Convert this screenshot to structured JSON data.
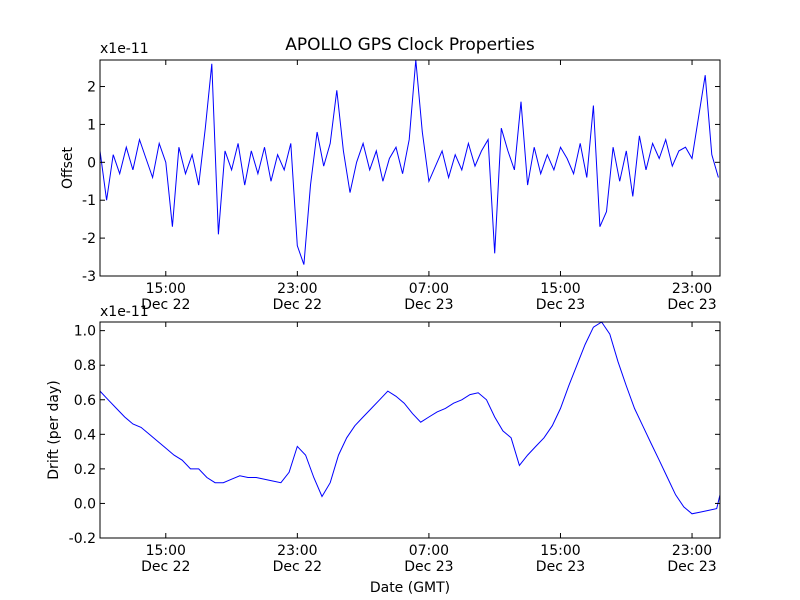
{
  "chart_data": [
    {
      "type": "line",
      "title": "APOLLO GPS Clock Properties",
      "xlabel": "",
      "ylabel": "Offset",
      "y_multiplier": "x1e-11",
      "ylim": [
        -3,
        2.7
      ],
      "yticks": [
        -3,
        -2,
        -1,
        0,
        1,
        2
      ],
      "xlim_hours": [
        11.0,
        48.7
      ],
      "xticks": [
        {
          "hour": 15,
          "time": "15:00",
          "date": "Dec 22"
        },
        {
          "hour": 23,
          "time": "23:00",
          "date": "Dec 22"
        },
        {
          "hour": 31,
          "time": "07:00",
          "date": "Dec 23"
        },
        {
          "hour": 39,
          "time": "15:00",
          "date": "Dec 23"
        },
        {
          "hour": 47,
          "time": "23:00",
          "date": "Dec 23"
        }
      ],
      "grid": false,
      "series": [
        {
          "color": "#0000ff",
          "x": [
            11.0,
            11.4,
            11.8,
            12.2,
            12.6,
            13.0,
            13.4,
            13.8,
            14.2,
            14.6,
            15.0,
            15.4,
            15.8,
            16.2,
            16.6,
            17.0,
            17.4,
            17.8,
            18.2,
            18.6,
            19.0,
            19.4,
            19.8,
            20.2,
            20.6,
            21.0,
            21.4,
            21.8,
            22.2,
            22.6,
            23.0,
            23.4,
            23.8,
            24.2,
            24.6,
            25.0,
            25.4,
            25.8,
            26.2,
            26.6,
            27.0,
            27.4,
            27.8,
            28.2,
            28.6,
            29.0,
            29.4,
            29.8,
            30.2,
            30.6,
            31.0,
            31.4,
            31.8,
            32.2,
            32.6,
            33.0,
            33.4,
            33.8,
            34.2,
            34.6,
            35.0,
            35.4,
            35.8,
            36.2,
            36.6,
            37.0,
            37.4,
            37.8,
            38.2,
            38.6,
            39.0,
            39.4,
            39.8,
            40.2,
            40.6,
            41.0,
            41.4,
            41.8,
            42.2,
            42.6,
            43.0,
            43.4,
            43.8,
            44.2,
            44.6,
            45.0,
            45.4,
            45.8,
            46.2,
            46.6,
            47.0,
            47.4,
            47.8,
            48.2,
            48.6
          ],
          "y": [
            0.3,
            -1.0,
            0.2,
            -0.3,
            0.4,
            -0.2,
            0.6,
            0.1,
            -0.4,
            0.5,
            0.0,
            -1.7,
            0.4,
            -0.3,
            0.2,
            -0.6,
            0.9,
            2.6,
            -1.9,
            0.3,
            -0.2,
            0.5,
            -0.6,
            0.3,
            -0.3,
            0.4,
            -0.5,
            0.2,
            -0.2,
            0.5,
            -2.2,
            -2.7,
            -0.6,
            0.8,
            -0.1,
            0.5,
            1.9,
            0.3,
            -0.8,
            0.0,
            0.5,
            -0.2,
            0.3,
            -0.5,
            0.1,
            0.4,
            -0.3,
            0.6,
            2.7,
            0.8,
            -0.5,
            -0.1,
            0.3,
            -0.4,
            0.2,
            -0.2,
            0.5,
            -0.1,
            0.3,
            0.6,
            -2.4,
            0.9,
            0.3,
            -0.2,
            1.6,
            -0.6,
            0.4,
            -0.3,
            0.2,
            -0.2,
            0.4,
            0.1,
            -0.3,
            0.5,
            -0.4,
            1.5,
            -1.7,
            -1.3,
            0.4,
            -0.5,
            0.3,
            -0.9,
            0.7,
            -0.2,
            0.5,
            0.1,
            0.6,
            -0.1,
            0.3,
            0.4,
            0.1,
            1.2,
            2.3,
            0.2,
            -0.4
          ]
        }
      ]
    },
    {
      "type": "line",
      "title": "",
      "xlabel": "Date (GMT)",
      "ylabel": "Drift (per day)",
      "y_multiplier": "x1e-11",
      "ylim": [
        -0.2,
        1.05
      ],
      "yticks": [
        -0.2,
        0.0,
        0.2,
        0.4,
        0.6,
        0.8,
        1.0
      ],
      "ytick_labels": [
        "-0.2",
        "0.0",
        "0.2",
        "0.4",
        "0.6",
        "0.8",
        "1.0"
      ],
      "xlim_hours": [
        11.0,
        48.7
      ],
      "xticks": [
        {
          "hour": 15,
          "time": "15:00",
          "date": "Dec 22"
        },
        {
          "hour": 23,
          "time": "23:00",
          "date": "Dec 22"
        },
        {
          "hour": 31,
          "time": "07:00",
          "date": "Dec 23"
        },
        {
          "hour": 39,
          "time": "15:00",
          "date": "Dec 23"
        },
        {
          "hour": 47,
          "time": "23:00",
          "date": "Dec 23"
        }
      ],
      "grid": false,
      "series": [
        {
          "color": "#0000ff",
          "x": [
            11.0,
            11.5,
            12.0,
            12.5,
            13.0,
            13.5,
            14.0,
            14.5,
            15.0,
            15.5,
            16.0,
            16.5,
            17.0,
            17.5,
            18.0,
            18.5,
            19.0,
            19.5,
            20.0,
            20.5,
            21.0,
            21.5,
            22.0,
            22.5,
            23.0,
            23.5,
            24.0,
            24.5,
            25.0,
            25.5,
            26.0,
            26.5,
            27.0,
            27.5,
            28.0,
            28.5,
            29.0,
            29.5,
            30.0,
            30.5,
            31.0,
            31.5,
            32.0,
            32.5,
            33.0,
            33.5,
            34.0,
            34.5,
            35.0,
            35.5,
            36.0,
            36.5,
            37.0,
            37.5,
            38.0,
            38.5,
            39.0,
            39.5,
            40.0,
            40.5,
            41.0,
            41.5,
            42.0,
            42.5,
            43.0,
            43.5,
            44.0,
            44.5,
            45.0,
            45.5,
            46.0,
            46.5,
            47.0,
            47.5,
            48.0,
            48.5,
            48.7
          ],
          "y": [
            0.65,
            0.6,
            0.55,
            0.5,
            0.46,
            0.44,
            0.4,
            0.36,
            0.32,
            0.28,
            0.25,
            0.2,
            0.2,
            0.15,
            0.12,
            0.12,
            0.14,
            0.16,
            0.15,
            0.15,
            0.14,
            0.13,
            0.12,
            0.18,
            0.33,
            0.28,
            0.15,
            0.04,
            0.12,
            0.28,
            0.38,
            0.45,
            0.5,
            0.55,
            0.6,
            0.65,
            0.62,
            0.58,
            0.52,
            0.47,
            0.5,
            0.53,
            0.55,
            0.58,
            0.6,
            0.63,
            0.64,
            0.6,
            0.5,
            0.42,
            0.38,
            0.22,
            0.28,
            0.33,
            0.38,
            0.45,
            0.55,
            0.68,
            0.8,
            0.92,
            1.02,
            1.05,
            0.98,
            0.82,
            0.68,
            0.55,
            0.45,
            0.35,
            0.25,
            0.15,
            0.05,
            -0.02,
            -0.06,
            -0.05,
            -0.04,
            -0.03,
            0.05
          ]
        }
      ]
    }
  ]
}
